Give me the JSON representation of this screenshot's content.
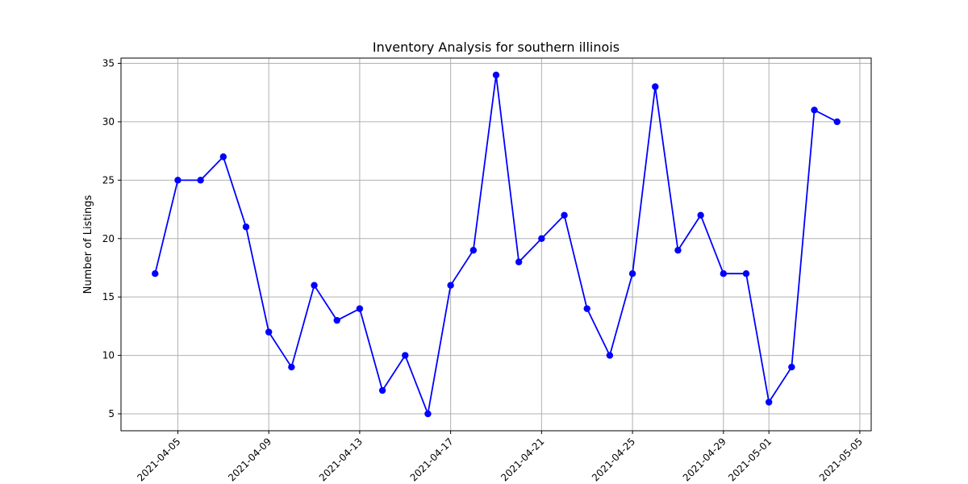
{
  "chart_data": {
    "type": "line",
    "title": "Inventory Analysis for southern illinois",
    "xlabel": "",
    "ylabel": "Number of Listings",
    "x": [
      "2021-04-04",
      "2021-04-05",
      "2021-04-06",
      "2021-04-07",
      "2021-04-08",
      "2021-04-09",
      "2021-04-10",
      "2021-04-11",
      "2021-04-12",
      "2021-04-13",
      "2021-04-14",
      "2021-04-15",
      "2021-04-16",
      "2021-04-17",
      "2021-04-18",
      "2021-04-19",
      "2021-04-20",
      "2021-04-21",
      "2021-04-22",
      "2021-04-23",
      "2021-04-24",
      "2021-04-25",
      "2021-04-26",
      "2021-04-27",
      "2021-04-28",
      "2021-04-29",
      "2021-04-30",
      "2021-05-01",
      "2021-05-02",
      "2021-05-03",
      "2021-05-04"
    ],
    "series": [
      {
        "values": [
          17,
          25,
          25,
          27,
          21,
          12,
          9,
          16,
          13,
          14,
          7,
          10,
          5,
          16,
          19,
          34,
          18,
          20,
          22,
          14,
          10,
          17,
          33,
          19,
          22,
          17,
          17,
          6,
          9,
          31,
          30
        ],
        "color": "#0000ff",
        "marker": "circle"
      }
    ],
    "xlim": [
      "2021-04-02.5",
      "2021-05-05.5"
    ],
    "ylim": [
      3.55,
      35.45
    ],
    "x_ticks": [
      "2021-04-05",
      "2021-04-09",
      "2021-04-13",
      "2021-04-17",
      "2021-04-21",
      "2021-04-25",
      "2021-04-29",
      "2021-05-01",
      "2021-05-05"
    ],
    "y_ticks": [
      5,
      10,
      15,
      20,
      25,
      30,
      35
    ],
    "grid": true
  }
}
